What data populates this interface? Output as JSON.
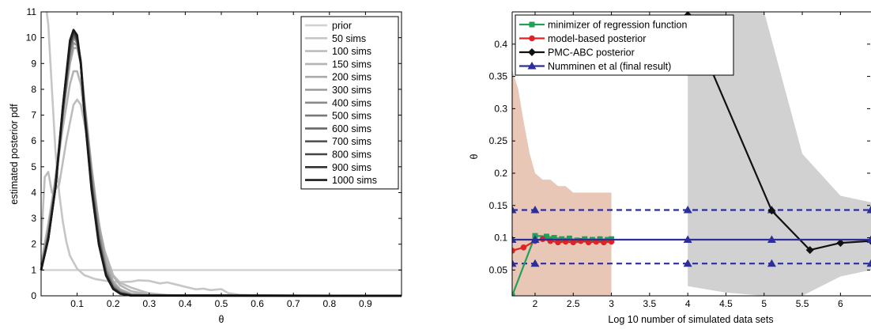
{
  "chart_data": [
    {
      "type": "line",
      "xlabel": "θ",
      "ylabel": "estimated posterior pdf",
      "xlim": [
        0,
        1
      ],
      "ylim": [
        0,
        11
      ],
      "xticks": [
        "0.1",
        "0.2",
        "0.3",
        "0.4",
        "0.5",
        "0.6",
        "0.7",
        "0.8",
        "0.9"
      ],
      "yticks": [
        "0",
        "1",
        "2",
        "3",
        "4",
        "5",
        "6",
        "7",
        "8",
        "9",
        "10",
        "11"
      ],
      "legend_position": "top-right",
      "series": [
        {
          "name": "prior",
          "color": "#d0d0d0",
          "x": [
            0,
            1
          ],
          "y": [
            1,
            1
          ]
        },
        {
          "name": "50 sims",
          "color": "#c6c6c6",
          "x": [
            0.01,
            0.02,
            0.03,
            0.04,
            0.05,
            0.06,
            0.07,
            0.08,
            0.1,
            0.12,
            0.15,
            0.18,
            0.2,
            0.22,
            0.25,
            0.27,
            0.3,
            0.33,
            0.35,
            0.38,
            0.4,
            0.43,
            0.45,
            0.47,
            0.5,
            0.52,
            0.55,
            0.6,
            0.7,
            1.0
          ],
          "y": [
            14,
            10.5,
            8.0,
            5.6,
            4.0,
            2.9,
            2.1,
            1.55,
            1.05,
            0.8,
            0.65,
            0.58,
            0.55,
            0.53,
            0.55,
            0.6,
            0.58,
            0.48,
            0.52,
            0.42,
            0.35,
            0.25,
            0.28,
            0.22,
            0.26,
            0.1,
            0.04,
            0.02,
            0.01,
            0.01
          ]
        },
        {
          "name": "100 sims",
          "color": "#bdbdbd",
          "x": [
            0.0,
            0.01,
            0.02,
            0.03,
            0.05,
            0.07,
            0.09,
            0.1,
            0.11,
            0.13,
            0.15,
            0.17,
            0.2,
            0.22,
            0.25,
            0.28,
            0.3,
            0.35,
            0.4,
            1.0
          ],
          "y": [
            2.0,
            4.6,
            4.8,
            4.0,
            4.3,
            6.0,
            7.4,
            7.6,
            7.4,
            6.0,
            3.8,
            2.0,
            0.8,
            0.5,
            0.32,
            0.18,
            0.1,
            0.03,
            0.01,
            0.0
          ]
        },
        {
          "name": "150 sims",
          "color": "#b4b4b4",
          "x": [
            0.0,
            0.02,
            0.04,
            0.06,
            0.08,
            0.09,
            0.1,
            0.11,
            0.12,
            0.14,
            0.16,
            0.18,
            0.2,
            0.22,
            0.25,
            0.3,
            0.35,
            1.0
          ],
          "y": [
            1.2,
            2.8,
            4.5,
            6.5,
            8.2,
            8.7,
            8.7,
            8.2,
            7.0,
            4.6,
            2.8,
            1.5,
            0.75,
            0.4,
            0.18,
            0.05,
            0.01,
            0.0
          ]
        },
        {
          "name": "200 sims",
          "color": "#aaaaaa",
          "x": [
            0.0,
            0.02,
            0.04,
            0.06,
            0.08,
            0.09,
            0.1,
            0.11,
            0.12,
            0.14,
            0.16,
            0.18,
            0.2,
            0.22,
            0.25,
            0.3,
            1.0
          ],
          "y": [
            1.1,
            2.6,
            4.6,
            7.0,
            9.0,
            9.6,
            9.6,
            9.0,
            7.6,
            5.0,
            2.8,
            1.3,
            0.55,
            0.25,
            0.08,
            0.02,
            0.0
          ]
        },
        {
          "name": "300 sims",
          "color": "#9a9a9a",
          "x": [
            0.0,
            0.02,
            0.04,
            0.06,
            0.08,
            0.09,
            0.1,
            0.11,
            0.12,
            0.14,
            0.16,
            0.18,
            0.2,
            0.22,
            0.25,
            0.3,
            1.0
          ],
          "y": [
            1.0,
            2.5,
            4.4,
            7.0,
            9.2,
            9.8,
            9.7,
            9.0,
            7.5,
            4.8,
            2.6,
            1.1,
            0.45,
            0.18,
            0.05,
            0.01,
            0.0
          ]
        },
        {
          "name": "400 sims",
          "color": "#8a8a8a",
          "x": [
            0.0,
            0.02,
            0.04,
            0.06,
            0.08,
            0.09,
            0.1,
            0.11,
            0.12,
            0.14,
            0.16,
            0.18,
            0.2,
            0.22,
            0.25,
            1.0
          ],
          "y": [
            1.0,
            2.4,
            4.3,
            7.0,
            9.4,
            10.0,
            9.8,
            9.0,
            7.4,
            4.6,
            2.4,
            1.0,
            0.38,
            0.14,
            0.03,
            0.0
          ]
        },
        {
          "name": "500 sims",
          "color": "#797979",
          "x": [
            0.0,
            0.02,
            0.04,
            0.06,
            0.08,
            0.09,
            0.1,
            0.11,
            0.12,
            0.14,
            0.16,
            0.18,
            0.2,
            0.22,
            0.25,
            1.0
          ],
          "y": [
            1.0,
            2.3,
            4.2,
            7.0,
            9.5,
            10.1,
            9.9,
            9.1,
            7.4,
            4.5,
            2.3,
            0.95,
            0.35,
            0.12,
            0.02,
            0.0
          ]
        },
        {
          "name": "600 sims",
          "color": "#676767",
          "x": [
            0.0,
            0.02,
            0.04,
            0.06,
            0.08,
            0.09,
            0.1,
            0.11,
            0.12,
            0.14,
            0.16,
            0.18,
            0.2,
            0.22,
            0.25,
            1.0
          ],
          "y": [
            1.0,
            2.3,
            4.2,
            7.1,
            9.6,
            10.1,
            9.9,
            9.1,
            7.3,
            4.4,
            2.2,
            0.9,
            0.32,
            0.1,
            0.02,
            0.0
          ]
        },
        {
          "name": "700 sims",
          "color": "#555555",
          "x": [
            0.0,
            0.02,
            0.04,
            0.06,
            0.08,
            0.09,
            0.1,
            0.11,
            0.12,
            0.14,
            0.16,
            0.18,
            0.2,
            0.22,
            0.25,
            1.0
          ],
          "y": [
            1.0,
            2.3,
            4.2,
            7.2,
            9.7,
            10.2,
            9.9,
            9.0,
            7.2,
            4.3,
            2.1,
            0.85,
            0.3,
            0.1,
            0.02,
            0.0
          ]
        },
        {
          "name": "800 sims",
          "color": "#434343",
          "x": [
            0.0,
            0.02,
            0.04,
            0.06,
            0.08,
            0.09,
            0.1,
            0.11,
            0.12,
            0.14,
            0.16,
            0.18,
            0.2,
            0.22,
            0.25,
            1.0
          ],
          "y": [
            1.0,
            2.2,
            4.2,
            7.2,
            9.8,
            10.2,
            10.0,
            9.0,
            7.2,
            4.2,
            2.1,
            0.82,
            0.28,
            0.09,
            0.02,
            0.0
          ]
        },
        {
          "name": "900 sims",
          "color": "#303030",
          "x": [
            0.0,
            0.02,
            0.04,
            0.06,
            0.08,
            0.09,
            0.1,
            0.11,
            0.12,
            0.14,
            0.16,
            0.18,
            0.2,
            0.22,
            0.25,
            1.0
          ],
          "y": [
            1.0,
            2.2,
            4.2,
            7.3,
            9.8,
            10.3,
            10.0,
            9.0,
            7.1,
            4.2,
            2.0,
            0.8,
            0.27,
            0.08,
            0.01,
            0.0
          ]
        },
        {
          "name": "1000 sims",
          "color": "#1a1a1a",
          "x": [
            0.0,
            0.02,
            0.04,
            0.06,
            0.08,
            0.09,
            0.1,
            0.11,
            0.12,
            0.14,
            0.16,
            0.18,
            0.2,
            0.22,
            0.25,
            1.0
          ],
          "y": [
            1.0,
            2.2,
            4.2,
            7.3,
            9.9,
            10.3,
            10.1,
            9.0,
            7.1,
            4.1,
            2.0,
            0.78,
            0.26,
            0.08,
            0.01,
            0.0
          ]
        }
      ]
    },
    {
      "type": "line",
      "xlabel": "Log 10 number of simulated data sets",
      "ylabel": "θ",
      "xlim": [
        1.7,
        6.4
      ],
      "ylim": [
        0.01,
        0.45
      ],
      "xticks": [
        "2",
        "2.5",
        "3",
        "3.5",
        "4",
        "4.5",
        "5",
        "5.5",
        "6"
      ],
      "yticks": [
        "0.05",
        "0.1",
        "0.15",
        "0.2",
        "0.25",
        "0.3",
        "0.35",
        "0.4"
      ],
      "legend_position": "top-left",
      "bands": [
        {
          "color": "#e8c7b7",
          "x": [
            1.7,
            1.78,
            1.85,
            1.93,
            2.0,
            2.1,
            2.2,
            2.3,
            2.4,
            2.5,
            2.6,
            2.7,
            2.8,
            2.9,
            3.0
          ],
          "upper": [
            0.36,
            0.33,
            0.28,
            0.23,
            0.2,
            0.19,
            0.19,
            0.18,
            0.18,
            0.17,
            0.17,
            0.17,
            0.17,
            0.17,
            0.17
          ],
          "lower": [
            0.01,
            0.01,
            0.01,
            0.01,
            0.01,
            0.01,
            0.01,
            0.01,
            0.01,
            0.01,
            0.01,
            0.01,
            0.01,
            0.01,
            0.01
          ]
        },
        {
          "color": "#d1d1d1",
          "x": [
            4.0,
            4.5,
            5.0,
            5.5,
            6.0,
            6.4
          ],
          "upper": [
            0.45,
            0.45,
            0.45,
            0.23,
            0.165,
            0.155
          ],
          "lower": [
            0.025,
            0.015,
            0.01,
            0.01,
            0.04,
            0.05
          ]
        }
      ],
      "series": [
        {
          "name": "minimizer of regression function",
          "color": "#22a05a",
          "marker": "square",
          "x": [
            1.7,
            2.0,
            2.15,
            2.25,
            2.35,
            2.45,
            2.55,
            2.65,
            2.75,
            2.85,
            2.95,
            3.0
          ],
          "y": [
            0.01,
            0.103,
            0.102,
            0.1,
            0.098,
            0.099,
            0.096,
            0.098,
            0.097,
            0.098,
            0.097,
            0.098
          ]
        },
        {
          "name": "model-based posterior",
          "color": "#e22222",
          "marker": "circle",
          "x": [
            1.7,
            1.85,
            2.0,
            2.1,
            2.2,
            2.3,
            2.4,
            2.5,
            2.6,
            2.7,
            2.8,
            2.9,
            3.0
          ],
          "y": [
            0.08,
            0.085,
            0.095,
            0.098,
            0.095,
            0.093,
            0.094,
            0.093,
            0.095,
            0.093,
            0.094,
            0.093,
            0.094
          ]
        },
        {
          "name": "PMC-ABC posterior",
          "color": "#111111",
          "marker": "diamond",
          "x": [
            4.0,
            5.1,
            5.6,
            6.0,
            6.4
          ],
          "y": [
            0.445,
            0.142,
            0.081,
            0.092,
            0.095
          ]
        },
        {
          "name": "Numminen et al (final result)",
          "color": "#2e2e9a",
          "marker": "triangle",
          "x": [
            1.7,
            2.0,
            4.0,
            5.1,
            6.4
          ],
          "y": [
            0.097,
            0.097,
            0.097,
            0.097,
            0.097
          ]
        }
      ],
      "reference_lines": [
        {
          "color": "#2e2e9a",
          "style": "dashed",
          "y": 0.143,
          "x": [
            1.7,
            2.0,
            4.0,
            5.1,
            6.4
          ]
        },
        {
          "color": "#2e2e9a",
          "style": "dashed",
          "y": 0.06,
          "x": [
            1.7,
            2.0,
            4.0,
            5.1,
            6.4
          ]
        }
      ]
    }
  ]
}
